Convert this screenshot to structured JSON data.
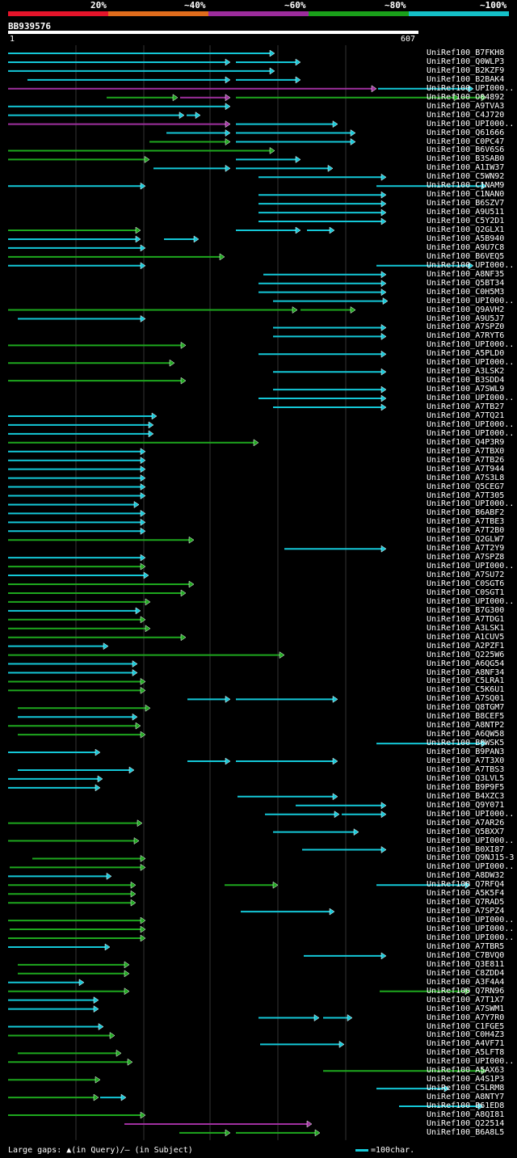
{
  "legend": {
    "labels": [
      "20%",
      "~40%",
      "~60%",
      "~80%",
      "~100%"
    ],
    "colors": [
      "#e5142a",
      "#e06c1c",
      "#9c2c9c",
      "#1aa01a",
      "#14c0c8"
    ]
  },
  "query": {
    "name": "BB939576",
    "start": "1",
    "end": "607",
    "length": 607
  },
  "colors": {
    "1": "#14c8d8",
    "2": "#1ea81e",
    "3": "#a030a0"
  },
  "footer": {
    "gaps": "Large gaps: ▲(in Query)/– (in Subject)",
    "scale": "=100char."
  },
  "hits": [
    {
      "name": "UniRef100_B7FKH8",
      "segs": [
        [
          0,
          330,
          1
        ]
      ]
    },
    {
      "name": "UniRef100_Q0WLP3",
      "segs": [
        [
          0,
          275,
          1
        ],
        [
          282,
          362,
          1
        ]
      ]
    },
    {
      "name": "UniRef100_B2KZF9",
      "segs": [
        [
          0,
          330,
          1
        ]
      ]
    },
    {
      "name": "UniRef100_B2BAK4",
      "segs": [
        [
          24,
          275,
          1
        ],
        [
          282,
          362,
          1
        ]
      ]
    },
    {
      "name": "UniRef100_UPI000..",
      "segs": [
        [
          0,
          456,
          3
        ],
        [
          458,
          576,
          1
        ]
      ]
    },
    {
      "name": "UniRef100_O04892",
      "segs": [
        [
          122,
          210,
          2
        ],
        [
          213,
          275,
          3
        ],
        [
          282,
          558,
          2
        ],
        [
          560,
          592,
          2
        ]
      ]
    },
    {
      "name": "UniRef100_A9TVA3",
      "segs": [
        [
          0,
          275,
          1
        ]
      ]
    },
    {
      "name": "UniRef100_C4J720",
      "segs": [
        [
          0,
          218,
          1
        ],
        [
          221,
          238,
          1
        ]
      ]
    },
    {
      "name": "UniRef100_UPI000..",
      "segs": [
        [
          0,
          275,
          3
        ],
        [
          282,
          408,
          1
        ]
      ]
    },
    {
      "name": "UniRef100_Q61666",
      "segs": [
        [
          196,
          275,
          1
        ],
        [
          282,
          430,
          1
        ]
      ]
    },
    {
      "name": "UniRef100_C0PC47",
      "segs": [
        [
          175,
          275,
          2
        ],
        [
          282,
          430,
          1
        ]
      ]
    },
    {
      "name": "UniRef100_B6V6S6",
      "segs": [
        [
          0,
          330,
          2
        ]
      ]
    },
    {
      "name": "UniRef100_B3SAB0",
      "segs": [
        [
          0,
          175,
          2
        ],
        [
          282,
          362,
          1
        ]
      ]
    },
    {
      "name": "UniRef100_A1IW37",
      "segs": [
        [
          180,
          275,
          1
        ],
        [
          282,
          402,
          1
        ]
      ]
    },
    {
      "name": "UniRef100_C5WN92",
      "segs": [
        [
          310,
          468,
          1
        ]
      ]
    },
    {
      "name": "UniRef100_C1NAM9",
      "segs": [
        [
          0,
          170,
          1
        ],
        [
          456,
          592,
          1
        ]
      ]
    },
    {
      "name": "UniRef100_C1NAN0",
      "segs": [
        [
          310,
          468,
          1
        ]
      ]
    },
    {
      "name": "UniRef100_B6SZV7",
      "segs": [
        [
          310,
          468,
          1
        ]
      ]
    },
    {
      "name": "UniRef100_A9U511",
      "segs": [
        [
          310,
          468,
          1
        ]
      ]
    },
    {
      "name": "UniRef100_C5Y2D1",
      "segs": [
        [
          310,
          468,
          1
        ]
      ]
    },
    {
      "name": "UniRef100_Q2GLX1",
      "segs": [
        [
          0,
          164,
          2
        ],
        [
          282,
          362,
          1
        ],
        [
          370,
          404,
          1
        ]
      ]
    },
    {
      "name": "UniRef100_A5B940",
      "segs": [
        [
          0,
          164,
          1
        ],
        [
          193,
          236,
          1
        ]
      ]
    },
    {
      "name": "UniRef100_A9U7C8",
      "segs": [
        [
          0,
          170,
          1
        ]
      ]
    },
    {
      "name": "UniRef100_B6VEQ5",
      "segs": [
        [
          0,
          268,
          2
        ]
      ]
    },
    {
      "name": "UniRef100_UPI000..",
      "segs": [
        [
          0,
          170,
          1
        ],
        [
          456,
          576,
          1
        ]
      ]
    },
    {
      "name": "UniRef100_A8NF35",
      "segs": [
        [
          316,
          468,
          1
        ]
      ]
    },
    {
      "name": "UniRef100_Q5BT34",
      "segs": [
        [
          310,
          468,
          1
        ]
      ]
    },
    {
      "name": "UniRef100_C0H5M3",
      "segs": [
        [
          310,
          468,
          1
        ]
      ]
    },
    {
      "name": "UniRef100_UPI000..",
      "segs": [
        [
          328,
          470,
          1
        ]
      ]
    },
    {
      "name": "UniRef100_Q9AVH2",
      "segs": [
        [
          0,
          358,
          2
        ],
        [
          362,
          430,
          2
        ]
      ]
    },
    {
      "name": "UniRef100_A9U5J7",
      "segs": [
        [
          12,
          170,
          1
        ]
      ]
    },
    {
      "name": "UniRef100_A7SPZ0",
      "segs": [
        [
          328,
          468,
          1
        ]
      ]
    },
    {
      "name": "UniRef100_A7RYT6",
      "segs": [
        [
          328,
          468,
          1
        ]
      ]
    },
    {
      "name": "UniRef100_UPI000..",
      "segs": [
        [
          0,
          220,
          2
        ]
      ]
    },
    {
      "name": "UniRef100_A5PLD0",
      "segs": [
        [
          310,
          468,
          1
        ]
      ]
    },
    {
      "name": "UniRef100_UPI000..",
      "segs": [
        [
          0,
          206,
          2
        ]
      ]
    },
    {
      "name": "UniRef100_A3LSK2",
      "segs": [
        [
          328,
          468,
          1
        ]
      ]
    },
    {
      "name": "UniRef100_B3SDD4",
      "segs": [
        [
          0,
          220,
          2
        ]
      ]
    },
    {
      "name": "UniRef100_A7SWL9",
      "segs": [
        [
          328,
          468,
          1
        ]
      ]
    },
    {
      "name": "UniRef100_UPI000..",
      "segs": [
        [
          310,
          468,
          1
        ]
      ]
    },
    {
      "name": "UniRef100_A7TB27",
      "segs": [
        [
          328,
          468,
          1
        ]
      ]
    },
    {
      "name": "UniRef100_A7TQ21",
      "segs": [
        [
          0,
          184,
          1
        ]
      ]
    },
    {
      "name": "UniRef100_UPI000..",
      "segs": [
        [
          0,
          180,
          1
        ]
      ]
    },
    {
      "name": "UniRef100_UPI000..",
      "segs": [
        [
          0,
          180,
          1
        ]
      ]
    },
    {
      "name": "UniRef100_Q4P3R9",
      "segs": [
        [
          0,
          310,
          2
        ]
      ]
    },
    {
      "name": "UniRef100_A7TBX0",
      "segs": [
        [
          0,
          170,
          1
        ]
      ]
    },
    {
      "name": "UniRef100_A7TB26",
      "segs": [
        [
          0,
          170,
          1
        ]
      ]
    },
    {
      "name": "UniRef100_A7T944",
      "segs": [
        [
          0,
          170,
          1
        ]
      ]
    },
    {
      "name": "UniRef100_A7S3L8",
      "segs": [
        [
          0,
          170,
          1
        ]
      ]
    },
    {
      "name": "UniRef100_Q5CEG7",
      "segs": [
        [
          0,
          170,
          1
        ]
      ]
    },
    {
      "name": "UniRef100_A7T305",
      "segs": [
        [
          0,
          170,
          1
        ]
      ]
    },
    {
      "name": "UniRef100_UPI000..",
      "segs": [
        [
          0,
          162,
          1
        ]
      ]
    },
    {
      "name": "UniRef100_B6ABF2",
      "segs": [
        [
          0,
          170,
          1
        ]
      ]
    },
    {
      "name": "UniRef100_A7TBE3",
      "segs": [
        [
          0,
          170,
          1
        ]
      ]
    },
    {
      "name": "UniRef100_A7T2B0",
      "segs": [
        [
          0,
          170,
          1
        ]
      ]
    },
    {
      "name": "UniRef100_Q2GLW7",
      "segs": [
        [
          0,
          230,
          2
        ]
      ]
    },
    {
      "name": "UniRef100_A7T2Y9",
      "segs": [
        [
          342,
          468,
          1
        ]
      ]
    },
    {
      "name": "UniRef100_A7SPZ8",
      "segs": [
        [
          0,
          170,
          1
        ]
      ]
    },
    {
      "name": "UniRef100_UPI000..",
      "segs": [
        [
          0,
          170,
          2
        ]
      ]
    },
    {
      "name": "UniRef100_A7SU72",
      "segs": [
        [
          0,
          174,
          1
        ]
      ]
    },
    {
      "name": "UniRef100_C0SGT6",
      "segs": [
        [
          0,
          230,
          2
        ]
      ]
    },
    {
      "name": "UniRef100_C0SGT1",
      "segs": [
        [
          0,
          220,
          2
        ]
      ]
    },
    {
      "name": "UniRef100_UPI000..",
      "segs": [
        [
          0,
          176,
          2
        ]
      ]
    },
    {
      "name": "UniRef100_B7G300",
      "segs": [
        [
          0,
          164,
          1
        ]
      ]
    },
    {
      "name": "UniRef100_A7TDG1",
      "segs": [
        [
          0,
          170,
          2
        ]
      ]
    },
    {
      "name": "UniRef100_A3LSK1",
      "segs": [
        [
          0,
          176,
          2
        ]
      ]
    },
    {
      "name": "UniRef100_A1CUV5",
      "segs": [
        [
          0,
          220,
          2
        ]
      ]
    },
    {
      "name": "UniRef100_A2PZF1",
      "segs": [
        [
          0,
          124,
          1
        ]
      ]
    },
    {
      "name": "UniRef100_Q225W6",
      "segs": [
        [
          0,
          342,
          2
        ]
      ]
    },
    {
      "name": "UniRef100_A6QG54",
      "segs": [
        [
          0,
          160,
          1
        ]
      ]
    },
    {
      "name": "UniRef100_A8NF34",
      "segs": [
        [
          0,
          160,
          1
        ]
      ]
    },
    {
      "name": "UniRef100_C5LRA1",
      "segs": [
        [
          0,
          170,
          2
        ]
      ]
    },
    {
      "name": "UniRef100_C5K6U1",
      "segs": [
        [
          0,
          170,
          2
        ]
      ]
    },
    {
      "name": "UniRef100_A7SQ01",
      "segs": [
        [
          222,
          275,
          1
        ],
        [
          282,
          408,
          1
        ]
      ]
    },
    {
      "name": "UniRef100_Q8TGM7",
      "segs": [
        [
          12,
          176,
          2
        ]
      ]
    },
    {
      "name": "UniRef100_B8CEF5",
      "segs": [
        [
          12,
          160,
          1
        ]
      ]
    },
    {
      "name": "UniRef100_A8NTP2",
      "segs": [
        [
          0,
          164,
          2
        ]
      ]
    },
    {
      "name": "UniRef100_A6QW58",
      "segs": [
        [
          12,
          170,
          2
        ]
      ]
    },
    {
      "name": "UniRef100_B0WSK5",
      "segs": [
        [
          456,
          592,
          1
        ]
      ]
    },
    {
      "name": "UniRef100_B9PAN3",
      "segs": [
        [
          0,
          114,
          1
        ]
      ]
    },
    {
      "name": "UniRef100_A7T3X0",
      "segs": [
        [
          222,
          275,
          1
        ],
        [
          282,
          408,
          1
        ]
      ]
    },
    {
      "name": "UniRef100_A7TBS3",
      "segs": [
        [
          12,
          156,
          1
        ]
      ]
    },
    {
      "name": "UniRef100_Q3LVL5",
      "segs": [
        [
          0,
          117,
          1
        ]
      ]
    },
    {
      "name": "UniRef100_B9P9F5",
      "segs": [
        [
          0,
          114,
          1
        ]
      ]
    },
    {
      "name": "UniRef100_B4XZC3",
      "segs": [
        [
          284,
          408,
          1
        ]
      ]
    },
    {
      "name": "UniRef100_Q9Y071",
      "segs": [
        [
          356,
          468,
          1
        ]
      ]
    },
    {
      "name": "UniRef100_UPI000..",
      "segs": [
        [
          318,
          410,
          1
        ],
        [
          413,
          468,
          1
        ]
      ]
    },
    {
      "name": "UniRef100_A7AR26",
      "segs": [
        [
          0,
          166,
          2
        ]
      ]
    },
    {
      "name": "UniRef100_Q5BXX7",
      "segs": [
        [
          328,
          434,
          1
        ]
      ]
    },
    {
      "name": "UniRef100_UPI000..",
      "segs": [
        [
          0,
          162,
          2
        ]
      ]
    },
    {
      "name": "UniRef100_B0XI87",
      "segs": [
        [
          364,
          468,
          1
        ]
      ]
    },
    {
      "name": "UniRef100_Q9NJ15-3",
      "segs": [
        [
          30,
          170,
          2
        ]
      ]
    },
    {
      "name": "UniRef100_UPI000..",
      "segs": [
        [
          2,
          170,
          2
        ]
      ]
    },
    {
      "name": "UniRef100_A8DW32",
      "segs": [
        [
          0,
          128,
          1
        ]
      ]
    },
    {
      "name": "UniRef100_Q7RFQ4",
      "segs": [
        [
          0,
          158,
          2
        ],
        [
          268,
          334,
          2
        ],
        [
          456,
          572,
          1
        ]
      ]
    },
    {
      "name": "UniRef100_A5K5F4",
      "segs": [
        [
          0,
          158,
          2
        ]
      ]
    },
    {
      "name": "UniRef100_Q7RAD5",
      "segs": [
        [
          0,
          158,
          2
        ]
      ]
    },
    {
      "name": "UniRef100_A7SPZ4",
      "segs": [
        [
          288,
          404,
          1
        ]
      ]
    },
    {
      "name": "UniRef100_UPI000..",
      "segs": [
        [
          0,
          170,
          2
        ]
      ]
    },
    {
      "name": "UniRef100_UPI000..",
      "segs": [
        [
          2,
          170,
          2
        ]
      ]
    },
    {
      "name": "UniRef100_UPI000..",
      "segs": [
        [
          0,
          170,
          2
        ]
      ]
    },
    {
      "name": "UniRef100_A7TBR5",
      "segs": [
        [
          0,
          126,
          1
        ]
      ]
    },
    {
      "name": "UniRef100_C7BVQ0",
      "segs": [
        [
          366,
          468,
          1
        ]
      ]
    },
    {
      "name": "UniRef100_Q3E811",
      "segs": [
        [
          12,
          150,
          2
        ]
      ]
    },
    {
      "name": "UniRef100_C8ZDD4",
      "segs": [
        [
          12,
          150,
          2
        ]
      ]
    },
    {
      "name": "UniRef100_A3F4A4",
      "segs": [
        [
          0,
          94,
          1
        ]
      ]
    },
    {
      "name": "UniRef100_Q7RN96",
      "segs": [
        [
          0,
          150,
          2
        ],
        [
          460,
          572,
          2
        ]
      ]
    },
    {
      "name": "UniRef100_A7T1X7",
      "segs": [
        [
          0,
          112,
          1
        ]
      ]
    },
    {
      "name": "UniRef100_A7SWM1",
      "segs": [
        [
          0,
          112,
          1
        ]
      ]
    },
    {
      "name": "UniRef100_A7Y7R0",
      "segs": [
        [
          310,
          385,
          1
        ],
        [
          390,
          426,
          1
        ]
      ]
    },
    {
      "name": "UniRef100_C1FGE5",
      "segs": [
        [
          0,
          118,
          1
        ]
      ]
    },
    {
      "name": "UniRef100_C0H4Z3",
      "segs": [
        [
          0,
          132,
          2
        ]
      ]
    },
    {
      "name": "UniRef100_A4VF71",
      "segs": [
        [
          312,
          416,
          1
        ]
      ]
    },
    {
      "name": "UniRef100_A5LFT8",
      "segs": [
        [
          12,
          140,
          2
        ]
      ]
    },
    {
      "name": "UniRef100_UPI000..",
      "segs": [
        [
          0,
          154,
          2
        ]
      ]
    },
    {
      "name": "UniRef100_A5AX63",
      "segs": [
        [
          390,
          592,
          2
        ]
      ]
    },
    {
      "name": "UniRef100_A4S1P3",
      "segs": [
        [
          0,
          114,
          2
        ]
      ]
    },
    {
      "name": "UniRef100_C5LRM8",
      "segs": [
        [
          456,
          546,
          1
        ]
      ]
    },
    {
      "name": "UniRef100_A8NTY7",
      "segs": [
        [
          0,
          112,
          2
        ],
        [
          114,
          146,
          1
        ]
      ]
    },
    {
      "name": "UniRef100_B61ED8",
      "segs": [
        [
          484,
          588,
          1
        ]
      ]
    },
    {
      "name": "UniRef100_A8QI81",
      "segs": [
        [
          0,
          170,
          2
        ]
      ]
    },
    {
      "name": "UniRef100_Q22514",
      "segs": [
        [
          144,
          376,
          3
        ]
      ]
    },
    {
      "name": "UniRef100_B6A8L5",
      "segs": [
        [
          212,
          275,
          2
        ],
        [
          282,
          386,
          2
        ]
      ]
    }
  ]
}
